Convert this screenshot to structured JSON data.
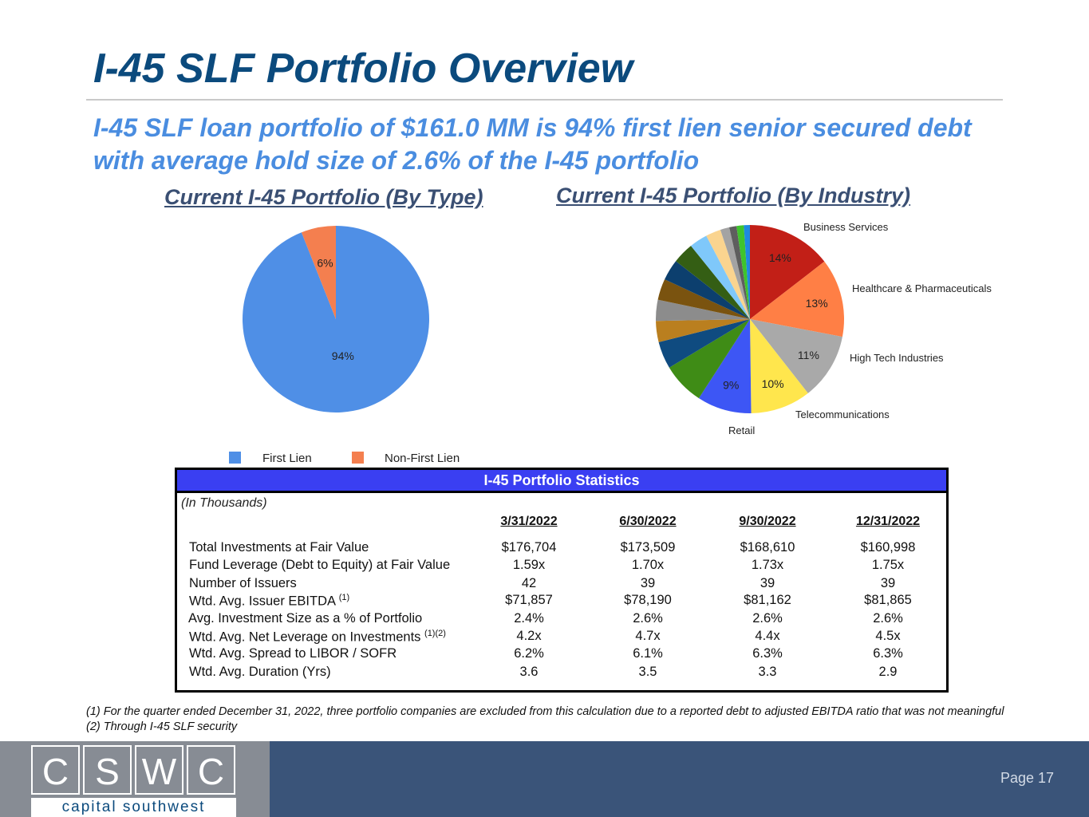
{
  "title": "I-45 SLF Portfolio Overview",
  "subtitle": "I-45 SLF loan portfolio of $161.0 MM is 94% first lien senior secured debt with average hold size of 2.6% of the I-45 portfolio",
  "chart_data": [
    {
      "type": "pie",
      "title": "Current I-45 Portfolio (By Type)",
      "slices": [
        {
          "name": "First Lien",
          "value": 94,
          "label": "94%",
          "color": "#4f8fe6"
        },
        {
          "name": "Non-First Lien",
          "value": 6,
          "label": "6%",
          "color": "#f47f4f"
        }
      ],
      "legend_position": "bottom"
    },
    {
      "type": "pie",
      "title": "Current I-45 Portfolio (By Industry)",
      "slices": [
        {
          "value": 14,
          "label": "14%",
          "name": "Business Services",
          "color": "#c21f17"
        },
        {
          "value": 13,
          "label": "13%",
          "name": "Healthcare & Pharmaceuticals",
          "color": "#ff7f45"
        },
        {
          "value": 11,
          "label": "11%",
          "name": "High Tech Industries",
          "color": "#a9a9a9"
        },
        {
          "value": 10,
          "label": "10%",
          "name": "Telecommunications",
          "color": "#ffe64d"
        },
        {
          "value": 9,
          "label": "9%",
          "name": "Retail",
          "color": "#3d56f5"
        },
        {
          "value": 7,
          "color": "#3f8c16"
        },
        {
          "value": 4.5,
          "color": "#0f4b80"
        },
        {
          "value": 3.5,
          "color": "#ba7f1f"
        },
        {
          "value": 3.5,
          "color": "#8c8c8c"
        },
        {
          "value": 3.5,
          "color": "#7a530f"
        },
        {
          "value": 3.5,
          "color": "#0c3f6e"
        },
        {
          "value": 3.5,
          "color": "#345e14"
        },
        {
          "value": 3,
          "color": "#7fc8fa"
        },
        {
          "value": 2.5,
          "color": "#fad48f"
        },
        {
          "value": 1.5,
          "color": "#a3a3a3"
        },
        {
          "value": 1.2,
          "color": "#5e5e5e"
        },
        {
          "value": 1.2,
          "color": "#3fc42d"
        },
        {
          "value": 1.0,
          "color": "#1e8ae0"
        }
      ]
    }
  ],
  "legend": {
    "first_lien": "First Lien",
    "non_first_lien": "Non-First Lien",
    "first_lien_color": "#4f8fe6",
    "non_first_lien_color": "#f47f4f"
  },
  "stats": {
    "header": "I-45 Portfolio Statistics",
    "unit": "(In Thousands)",
    "columns": [
      "3/31/2022",
      "6/30/2022",
      "9/30/2022",
      "12/31/2022"
    ],
    "rows": [
      {
        "label": "Total Investments at Fair Value",
        "sup": "",
        "values": [
          "$176,704",
          "$173,509",
          "$168,610",
          "$160,998"
        ]
      },
      {
        "label": "Fund Leverage (Debt to Equity) at Fair Value",
        "sup": "",
        "values": [
          "1.59x",
          "1.70x",
          "1.73x",
          "1.75x"
        ]
      },
      {
        "label": "Number of Issuers",
        "sup": "",
        "values": [
          "42",
          "39",
          "39",
          "39"
        ]
      },
      {
        "label": "Wtd. Avg. Issuer EBITDA",
        "sup": "(1)",
        "values": [
          "$71,857",
          "$78,190",
          "$81,162",
          "$81,865"
        ]
      },
      {
        "label": "Avg. Investment Size as a % of Portfolio",
        "sup": "",
        "values": [
          "2.4%",
          "2.6%",
          "2.6%",
          "2.6%"
        ]
      },
      {
        "label": "Wtd. Avg. Net Leverage on Investments",
        "sup": "(1)(2)",
        "values": [
          "4.2x",
          "4.7x",
          "4.4x",
          "4.5x"
        ]
      },
      {
        "label": "Wtd. Avg. Spread to LIBOR / SOFR",
        "sup": "",
        "values": [
          "6.2%",
          "6.1%",
          "6.3%",
          "6.3%"
        ]
      },
      {
        "label": "Wtd. Avg. Duration (Yrs)",
        "sup": "",
        "values": [
          "3.6",
          "3.5",
          "3.3",
          "2.9"
        ]
      }
    ]
  },
  "footnotes": [
    "(1) For the quarter ended December 31, 2022, three portfolio companies are excluded from this calculation due to a reported debt to adjusted EBITDA ratio that was not meaningful",
    "(2) Through I-45 SLF security"
  ],
  "logo": {
    "letters": [
      "C",
      "S",
      "W",
      "C"
    ],
    "text": "capital southwest"
  },
  "page": "Page 17"
}
